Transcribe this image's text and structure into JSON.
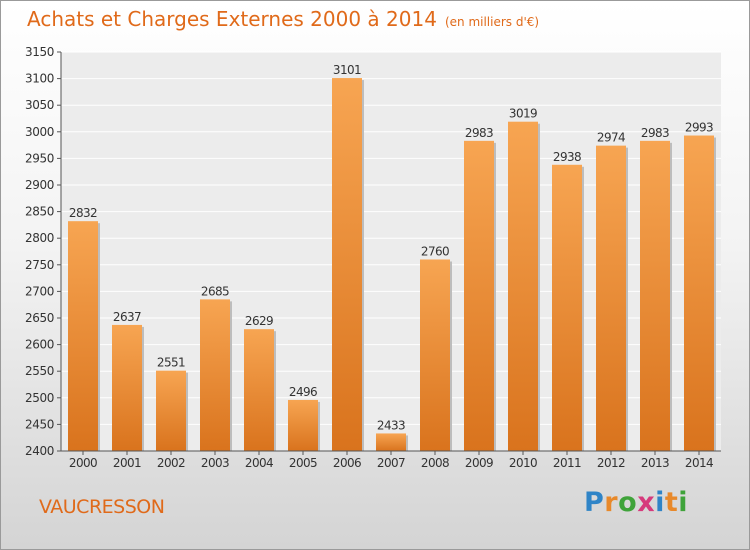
{
  "chart_data": {
    "type": "bar",
    "title": "Achats et Charges Externes 2000 à 2014",
    "subtitle": "(en milliers d'€)",
    "categories": [
      "2000",
      "2001",
      "2002",
      "2003",
      "2004",
      "2005",
      "2006",
      "2007",
      "2008",
      "2009",
      "2010",
      "2011",
      "2012",
      "2013",
      "2014"
    ],
    "values": [
      2832,
      2637,
      2551,
      2685,
      2629,
      2496,
      3101,
      2433,
      2760,
      2983,
      3019,
      2938,
      2974,
      2983,
      2993
    ],
    "yticks": [
      2400,
      2450,
      2500,
      2550,
      2600,
      2650,
      2700,
      2750,
      2800,
      2850,
      2900,
      2950,
      3000,
      3050,
      3100,
      3150
    ],
    "ylim": [
      2400,
      3150
    ],
    "grid": true,
    "legend": "none",
    "bar_color_top": "#f7a552",
    "bar_color_bottom": "#d9731d"
  },
  "footer": {
    "commune": "VAUCRESSON",
    "logo_letters": [
      "P",
      "r",
      "o",
      "x",
      "i",
      "t",
      "i"
    ],
    "logo_colors": [
      "#2f84c7",
      "#e8892a",
      "#3fa33a",
      "#d63a7c",
      "#2f84c7",
      "#e8892a",
      "#3fa33a"
    ]
  }
}
